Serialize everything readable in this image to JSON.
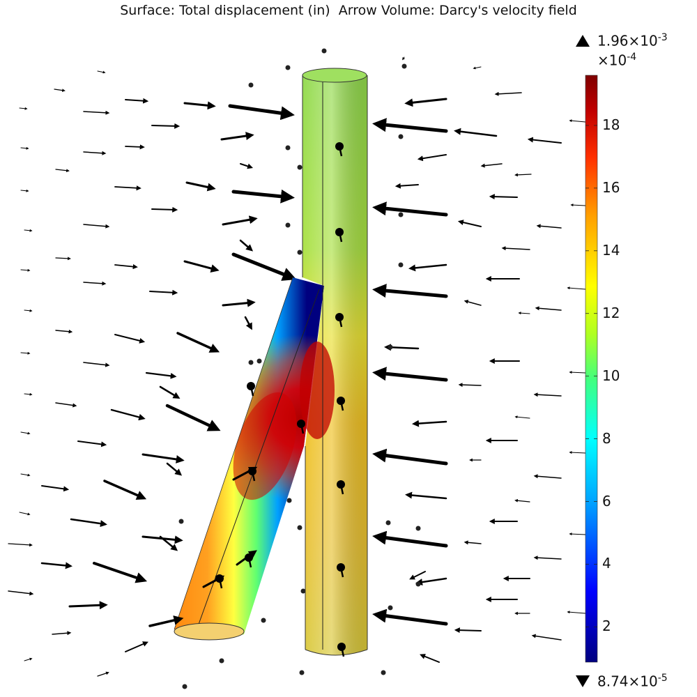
{
  "title": "Surface: Total displacement (in)  Arrow Volume: Darcy's velocity field",
  "colorbar": {
    "max_label": "1.96×10",
    "max_exp": "-3",
    "scale_label": "×10",
    "scale_exp": "-4",
    "min_label": "8.74×10",
    "min_exp": "-5",
    "ticks": [
      "18",
      "16",
      "14",
      "12",
      "10",
      "8",
      "6",
      "4",
      "2"
    ],
    "tick_values": [
      18,
      16,
      14,
      12,
      10,
      8,
      6,
      4,
      2
    ],
    "range": [
      0.874,
      19.6
    ],
    "colormap": [
      "#00007f",
      "#0000ff",
      "#00a0ff",
      "#00ffff",
      "#40ff80",
      "#b0ff20",
      "#ffff00",
      "#ffa000",
      "#ff3000",
      "#c00000",
      "#7f0000"
    ]
  },
  "colors": {
    "arrow": "#000000",
    "pipe_top": "#8fd94a",
    "hot": "#c80000"
  }
}
